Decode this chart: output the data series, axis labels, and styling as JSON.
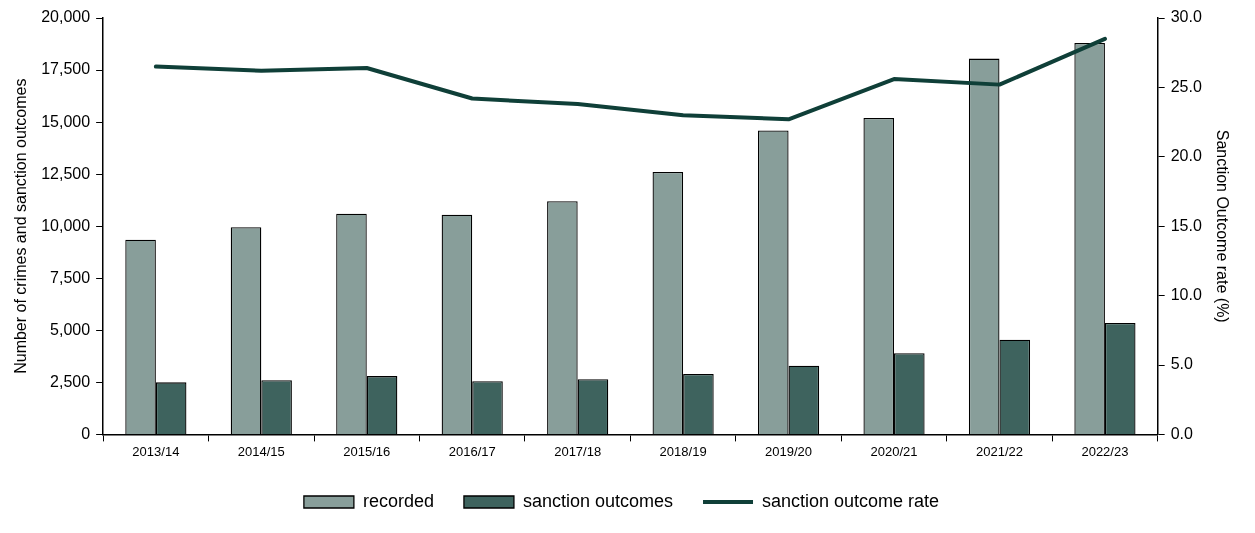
{
  "chart_data": {
    "type": "bar",
    "ylabel": "Number of crimes and sanction outcomes",
    "y2label": "Sanction Outcome rate (%)",
    "categories": [
      "2013/14",
      "2014/15",
      "2015/16",
      "2016/17",
      "2017/18",
      "2018/19",
      "2019/20",
      "2020/21",
      "2021/22",
      "2022/23"
    ],
    "series": [
      {
        "name": "recorded",
        "color": "#889e9a",
        "values": [
          9350,
          9950,
          10600,
          10550,
          11200,
          12600,
          14600,
          15200,
          18050,
          18800
        ]
      },
      {
        "name": "sanction outcomes",
        "color": "#3e635e",
        "values": [
          2500,
          2600,
          2800,
          2550,
          2650,
          2900,
          3300,
          3900,
          4550,
          5350
        ]
      },
      {
        "name": "sanction outcome rate",
        "type": "line",
        "axis": "y2",
        "color": "#0f3f38",
        "values": [
          26.5,
          26.2,
          26.4,
          24.2,
          23.8,
          23.0,
          22.7,
          25.6,
          25.2,
          28.5
        ]
      }
    ],
    "ylim": [
      0,
      20000
    ],
    "yticks": [
      {
        "value": 0,
        "label": "0"
      },
      {
        "value": 2500,
        "label": "2,500"
      },
      {
        "value": 5000,
        "label": "5,000"
      },
      {
        "value": 7500,
        "label": "7,500"
      },
      {
        "value": 10000,
        "label": "10,000"
      },
      {
        "value": 12500,
        "label": "12,500"
      },
      {
        "value": 15000,
        "label": "15,000"
      },
      {
        "value": 17500,
        "label": "17,500"
      },
      {
        "value": 20000,
        "label": "20,000"
      }
    ],
    "y2lim": [
      0,
      30
    ],
    "y2ticks": [
      {
        "value": 0,
        "label": "0.0"
      },
      {
        "value": 5,
        "label": "5.0"
      },
      {
        "value": 10,
        "label": "10.0"
      },
      {
        "value": 15,
        "label": "15.0"
      },
      {
        "value": 20,
        "label": "20.0"
      },
      {
        "value": 25,
        "label": "25.0"
      },
      {
        "value": 30,
        "label": "30.0"
      }
    ],
    "grid": false,
    "legend": "bottom",
    "marker": "none"
  }
}
